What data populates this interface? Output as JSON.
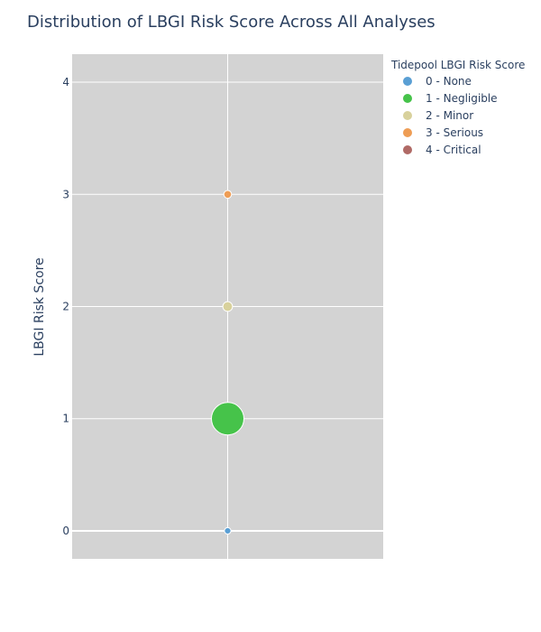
{
  "chart_data": {
    "type": "scatter",
    "title": "Distribution of LBGI Risk Score Across All Analyses",
    "xlabel": "",
    "ylabel": "LBGI Risk Score",
    "ylim": [
      -0.25,
      4.25
    ],
    "yticks": [
      "0",
      "1",
      "2",
      "3",
      "4"
    ],
    "grid": true,
    "background": "#d3d3d3",
    "legend": {
      "title": "Tidepool LBGI Risk Score",
      "placement": "top-right"
    },
    "series": [
      {
        "name": "0 - None",
        "color": "#5a9fd4",
        "y": 0,
        "relative_size": 0.2
      },
      {
        "name": "1 - Negligible",
        "color": "#46c34a",
        "y": 1,
        "relative_size": 1.0
      },
      {
        "name": "2 - Minor",
        "color": "#d8d19c",
        "y": 2,
        "relative_size": 0.3
      },
      {
        "name": "3 - Serious",
        "color": "#ee9d55",
        "y": 3,
        "relative_size": 0.24
      },
      {
        "name": "4 - Critical",
        "color": "#b06a66",
        "y": null,
        "relative_size": 0
      }
    ]
  }
}
